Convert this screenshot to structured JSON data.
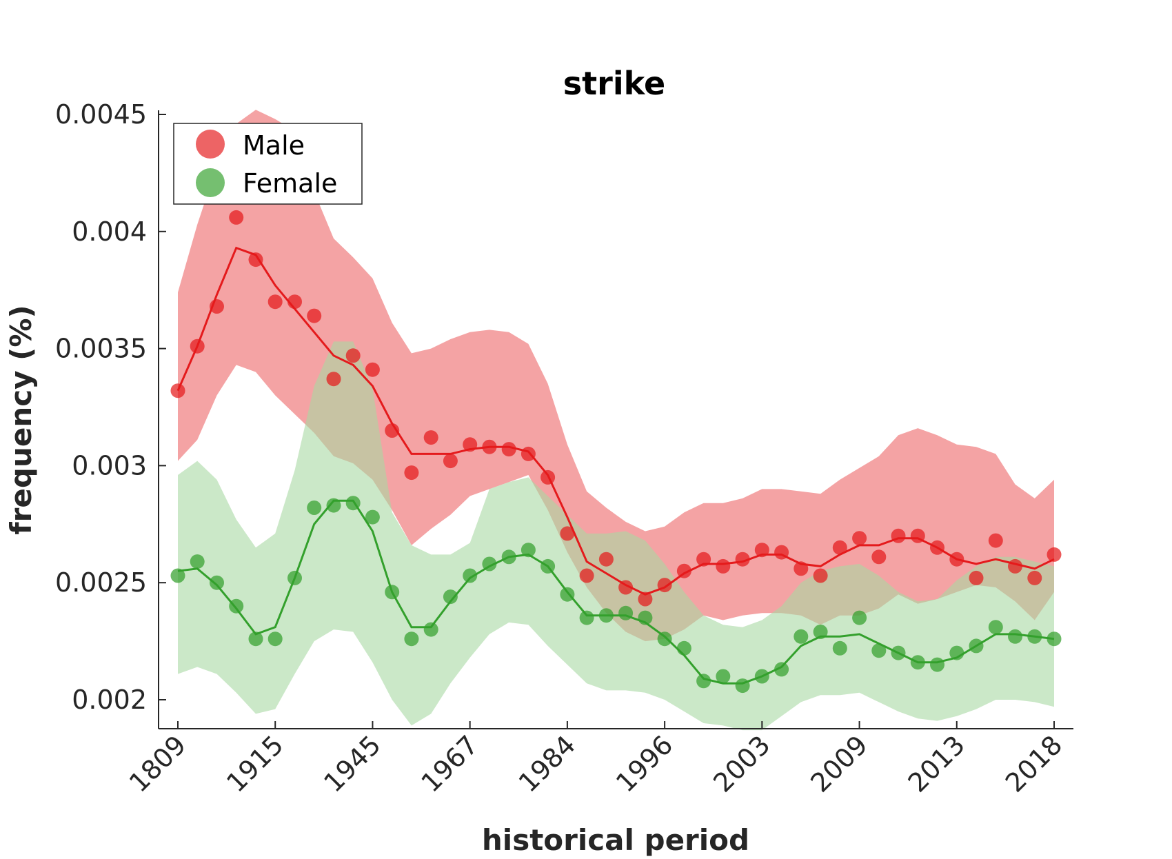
{
  "chart_data": {
    "type": "line",
    "title": "strike",
    "xlabel": "historical period",
    "ylabel": "frequency (%)",
    "ylim": [
      0.00188,
      0.00452
    ],
    "y_ticks": [
      0.002,
      0.0025,
      0.003,
      0.0035,
      0.004,
      0.0045
    ],
    "y_tick_labels": [
      "0.002",
      "0.0025",
      "0.003",
      "0.0035",
      "0.004",
      "0.0045"
    ],
    "x_tick_labels": [
      "1809",
      "1915",
      "1945",
      "1967",
      "1984",
      "1996",
      "2003",
      "2009",
      "2013",
      "2018"
    ],
    "x_tick_period_index": [
      0,
      5,
      10,
      15,
      20,
      25,
      30,
      35,
      40,
      45
    ],
    "n_periods": 46,
    "legend_position": "top-left",
    "grid": false,
    "series": [
      {
        "name": "Male",
        "color": "#e41a1c",
        "band_color": "#f4a3a4",
        "points": [
          0.00332,
          0.00351,
          0.00368,
          0.00406,
          0.00388,
          0.0037,
          0.0037,
          0.00364,
          0.00337,
          0.00347,
          0.00341,
          0.00315,
          0.00297,
          0.00312,
          0.00302,
          0.00309,
          0.00308,
          0.00307,
          0.00305,
          0.00295,
          0.00271,
          0.00253,
          0.0026,
          0.00248,
          0.00243,
          0.00249,
          0.00255,
          0.0026,
          0.00257,
          0.0026,
          0.00264,
          0.00263,
          0.00256,
          0.00253,
          0.00265,
          0.00269,
          0.00261,
          0.0027,
          0.0027,
          0.00265,
          0.0026,
          0.00252,
          0.00268,
          0.00257,
          0.00252,
          0.00262
        ],
        "line": [
          0.00332,
          0.00351,
          0.00373,
          0.00393,
          0.0039,
          0.00377,
          0.00367,
          0.00357,
          0.00347,
          0.00343,
          0.00334,
          0.00318,
          0.00305,
          0.00305,
          0.00305,
          0.00307,
          0.00308,
          0.00308,
          0.00306,
          0.00296,
          0.00278,
          0.00259,
          0.00254,
          0.00249,
          0.00245,
          0.00248,
          0.00254,
          0.00258,
          0.00258,
          0.00259,
          0.00262,
          0.00262,
          0.00258,
          0.00257,
          0.00262,
          0.00266,
          0.00266,
          0.00269,
          0.00269,
          0.00265,
          0.0026,
          0.00258,
          0.0026,
          0.00258,
          0.00256,
          0.0026
        ],
        "band_upper": [
          0.00374,
          0.00403,
          0.00428,
          0.00446,
          0.00452,
          0.00448,
          0.00443,
          0.00417,
          0.00397,
          0.00389,
          0.0038,
          0.00361,
          0.00348,
          0.0035,
          0.00354,
          0.00357,
          0.00358,
          0.00357,
          0.00352,
          0.00335,
          0.00309,
          0.00289,
          0.00282,
          0.00276,
          0.00272,
          0.00274,
          0.0028,
          0.00284,
          0.00284,
          0.00286,
          0.0029,
          0.0029,
          0.00289,
          0.00288,
          0.00294,
          0.00299,
          0.00304,
          0.00313,
          0.00316,
          0.00313,
          0.00309,
          0.00308,
          0.00305,
          0.00292,
          0.00286,
          0.00294
        ],
        "band_lower": [
          0.00302,
          0.00311,
          0.0033,
          0.00343,
          0.0034,
          0.0033,
          0.00322,
          0.00314,
          0.00304,
          0.00301,
          0.00294,
          0.00281,
          0.00266,
          0.00273,
          0.00279,
          0.00287,
          0.0029,
          0.00293,
          0.00296,
          0.00281,
          0.00263,
          0.00248,
          0.00237,
          0.00229,
          0.00225,
          0.00226,
          0.0023,
          0.00236,
          0.00234,
          0.00236,
          0.00237,
          0.00237,
          0.00236,
          0.00232,
          0.00236,
          0.00236,
          0.00239,
          0.00245,
          0.00241,
          0.00243,
          0.00246,
          0.00249,
          0.00248,
          0.00242,
          0.00234,
          0.00246
        ]
      },
      {
        "name": "Female",
        "color": "#33a02c",
        "band_color": "#a9d8a3",
        "points": [
          0.00253,
          0.00259,
          0.0025,
          0.0024,
          0.00226,
          0.00226,
          0.00252,
          0.00282,
          0.00283,
          0.00284,
          0.00278,
          0.00246,
          0.00226,
          0.0023,
          0.00244,
          0.00253,
          0.00258,
          0.00261,
          0.00264,
          0.00257,
          0.00245,
          0.00235,
          0.00236,
          0.00237,
          0.00235,
          0.00226,
          0.00222,
          0.00208,
          0.0021,
          0.00206,
          0.0021,
          0.00213,
          0.00227,
          0.00229,
          0.00222,
          0.00235,
          0.00221,
          0.0022,
          0.00216,
          0.00215,
          0.0022,
          0.00223,
          0.00231,
          0.00227,
          0.00227,
          0.00226
        ],
        "line": [
          0.00255,
          0.00256,
          0.00249,
          0.00239,
          0.00228,
          0.00231,
          0.00252,
          0.00275,
          0.00285,
          0.00285,
          0.00272,
          0.00246,
          0.00231,
          0.00231,
          0.00242,
          0.00252,
          0.00257,
          0.00261,
          0.00262,
          0.00257,
          0.00246,
          0.00236,
          0.00236,
          0.00236,
          0.00233,
          0.00227,
          0.00219,
          0.00209,
          0.00207,
          0.00207,
          0.0021,
          0.00214,
          0.00223,
          0.00227,
          0.00227,
          0.00228,
          0.00224,
          0.0022,
          0.00216,
          0.00216,
          0.00218,
          0.00223,
          0.00228,
          0.00228,
          0.00227,
          0.00226
        ],
        "band_upper": [
          0.00296,
          0.00302,
          0.00294,
          0.00277,
          0.00265,
          0.00271,
          0.00298,
          0.00334,
          0.00353,
          0.00353,
          0.00333,
          0.0028,
          0.00266,
          0.00262,
          0.00262,
          0.00267,
          0.0029,
          0.00293,
          0.00295,
          0.00287,
          0.00279,
          0.00271,
          0.00271,
          0.00272,
          0.00268,
          0.00258,
          0.00246,
          0.00236,
          0.00232,
          0.00231,
          0.00234,
          0.0024,
          0.0025,
          0.00255,
          0.00257,
          0.00258,
          0.00253,
          0.00246,
          0.00242,
          0.00243,
          0.00251,
          0.00257,
          0.00261,
          0.00261,
          0.00259,
          0.00257
        ],
        "band_lower": [
          0.00211,
          0.00214,
          0.00211,
          0.00203,
          0.00194,
          0.00196,
          0.00211,
          0.00225,
          0.0023,
          0.00229,
          0.00216,
          0.002,
          0.00189,
          0.00194,
          0.00207,
          0.00218,
          0.00228,
          0.00233,
          0.00232,
          0.00223,
          0.00215,
          0.00207,
          0.00204,
          0.00204,
          0.00203,
          0.002,
          0.00195,
          0.0019,
          0.00189,
          0.00187,
          0.00187,
          0.00193,
          0.00199,
          0.00202,
          0.00202,
          0.00203,
          0.00199,
          0.00195,
          0.00192,
          0.00191,
          0.00193,
          0.00196,
          0.002,
          0.002,
          0.00199,
          0.00197
        ]
      }
    ]
  }
}
